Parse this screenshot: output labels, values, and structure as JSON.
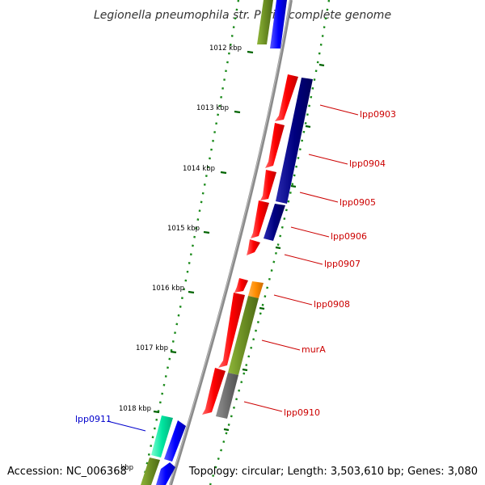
{
  "title": "Legionella pneumophila str. Paris, complete genome",
  "footer": {
    "accession": "Accession: NC_006368",
    "topology": "Topology: circular; Length: 3,503,610 bp; Genes: 3,080"
  },
  "ticks": [
    {
      "label": "1012 kbp"
    },
    {
      "label": "1013 kbp"
    },
    {
      "label": "1014 kbp"
    },
    {
      "label": "1015 kbp"
    },
    {
      "label": "1016 kbp"
    },
    {
      "label": "1017 kbp"
    },
    {
      "label": "1018 kbp"
    },
    {
      "label": "kbp"
    }
  ],
  "gene_labels": [
    {
      "text": "lpp0903",
      "color": "#cc0000"
    },
    {
      "text": "lpp0904",
      "color": "#cc0000"
    },
    {
      "text": "lpp0905",
      "color": "#cc0000"
    },
    {
      "text": "lpp0906",
      "color": "#cc0000"
    },
    {
      "text": "lpp0907",
      "color": "#cc0000"
    },
    {
      "text": "lpp0908",
      "color": "#cc0000"
    },
    {
      "text": "murA",
      "color": "#cc0000"
    },
    {
      "text": "lpp0910",
      "color": "#cc0000"
    },
    {
      "text": "lpp0911",
      "color": "#0000cc"
    }
  ],
  "colors": {
    "backbone": "#8a8a8a",
    "gene_red": "#ff0000",
    "cog_navy": "#000080",
    "cog_olive": "#6b8e23",
    "cog_gray": "#6e6e6e",
    "cog_orange": "#ff8c00",
    "gene_blue": "#0000ff",
    "cog_teal": "#00e5a0",
    "tick_green": "#006400"
  }
}
